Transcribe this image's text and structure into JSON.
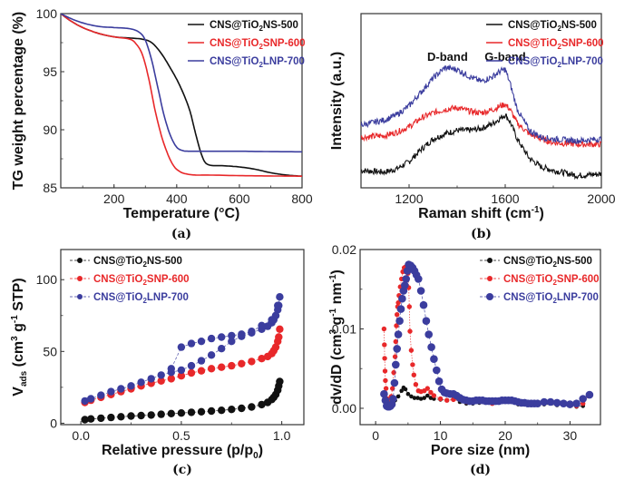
{
  "colors": {
    "black": "#111111",
    "red": "#e8282a",
    "blue": "#3b3d9e"
  },
  "chart_data": [
    {
      "id": "a",
      "type": "line",
      "panel_label": "(a)",
      "title": "",
      "xlabel": "Temperature (°C)",
      "ylabel": "TG weight percentage (%)",
      "xlim": [
        30,
        800
      ],
      "ylim": [
        85,
        100
      ],
      "xticks": [
        200,
        400,
        600,
        800
      ],
      "yticks": [
        85,
        90,
        95,
        100
      ],
      "legend_position": "top-right",
      "series": [
        {
          "name": "CNS@TiO2NS-500",
          "legend_main": "CNS@TiO",
          "legend_sub": "2",
          "legend_rest": "NS-500",
          "color": "#111111",
          "x": [
            30,
            60,
            100,
            150,
            200,
            250,
            290,
            320,
            350,
            380,
            410,
            440,
            460,
            480,
            500,
            550,
            600,
            650,
            700,
            750,
            800
          ],
          "y": [
            100,
            99.4,
            98.8,
            98.3,
            98.0,
            97.9,
            97.8,
            97.5,
            96.6,
            95.3,
            93.8,
            91.8,
            89.7,
            87.8,
            87.0,
            86.9,
            86.8,
            86.6,
            86.3,
            86.1,
            86.0
          ]
        },
        {
          "name": "CNS@TiO2SNP-600",
          "legend_main": "CNS@TiO",
          "legend_sub": "2",
          "legend_rest": "SNP-600",
          "color": "#e8282a",
          "x": [
            30,
            60,
            100,
            150,
            200,
            250,
            270,
            290,
            310,
            330,
            350,
            370,
            390,
            410,
            430,
            460,
            500,
            600,
            700,
            800
          ],
          "y": [
            100,
            99.4,
            98.8,
            98.3,
            98.0,
            97.8,
            97.4,
            96.5,
            94.5,
            91.8,
            89.6,
            88.0,
            86.9,
            86.4,
            86.2,
            86.1,
            86.1,
            86.05,
            86.02,
            86.0
          ]
        },
        {
          "name": "CNS@TiO2LNP-700",
          "legend_main": "CNS@TiO",
          "legend_sub": "2",
          "legend_rest": "LNP-700",
          "color": "#3b3d9e",
          "x": [
            30,
            60,
            100,
            150,
            200,
            250,
            280,
            300,
            320,
            340,
            360,
            380,
            400,
            420,
            440,
            500,
            600,
            700,
            800
          ],
          "y": [
            100,
            99.6,
            99.2,
            98.9,
            98.8,
            98.7,
            98.4,
            97.7,
            96.0,
            93.6,
            91.2,
            89.5,
            88.5,
            88.2,
            88.15,
            88.15,
            88.15,
            88.12,
            88.1
          ]
        }
      ]
    },
    {
      "id": "b",
      "type": "line",
      "panel_label": "(b)",
      "title": "",
      "xlabel": "Raman shift (cm-1)",
      "xlabel_main": "Raman shift (cm",
      "xlabel_sup": "-1",
      "xlabel_end": ")",
      "ylabel": "Intensity (a.u.)",
      "xlim": [
        1000,
        2000
      ],
      "ylim": [
        0,
        1
      ],
      "xticks": [
        1200,
        1600,
        2000
      ],
      "yticks": [],
      "legend_position": "top-right",
      "annotations": [
        {
          "text": "D-band",
          "x": 1360,
          "y": 0.73
        },
        {
          "text": "G-band",
          "x": 1600,
          "y": 0.73
        }
      ],
      "series": [
        {
          "name": "CNS@TiO2NS-500",
          "legend_main": "CNS@TiO",
          "legend_sub": "2",
          "legend_rest": "NS-500",
          "color": "#111111",
          "x": [
            1000,
            1100,
            1150,
            1200,
            1250,
            1300,
            1350,
            1400,
            1450,
            1500,
            1550,
            1580,
            1600,
            1620,
            1650,
            1700,
            1750,
            1800,
            1900,
            2000
          ],
          "y": [
            0.1,
            0.09,
            0.11,
            0.15,
            0.22,
            0.28,
            0.31,
            0.33,
            0.33,
            0.34,
            0.37,
            0.4,
            0.42,
            0.38,
            0.28,
            0.17,
            0.12,
            0.1,
            0.07,
            0.08
          ]
        },
        {
          "name": "CNS@TiO2SNP-600",
          "legend_main": "CNS@TiO",
          "legend_sub": "2",
          "legend_rest": "SNP-600",
          "color": "#e8282a",
          "x": [
            1000,
            1100,
            1150,
            1200,
            1250,
            1300,
            1350,
            1400,
            1450,
            1500,
            1550,
            1580,
            1600,
            1620,
            1650,
            1700,
            1750,
            1800,
            1900,
            2000
          ],
          "y": [
            0.29,
            0.3,
            0.32,
            0.35,
            0.4,
            0.43,
            0.45,
            0.46,
            0.44,
            0.43,
            0.45,
            0.47,
            0.48,
            0.45,
            0.37,
            0.31,
            0.28,
            0.26,
            0.25,
            0.25
          ]
        },
        {
          "name": "CNS@TiO2LNP-700",
          "legend_main": "CNS@TiO",
          "legend_sub": "2",
          "legend_rest": "LNP-700",
          "color": "#3b3d9e",
          "x": [
            1000,
            1100,
            1150,
            1200,
            1250,
            1300,
            1350,
            1400,
            1450,
            1500,
            1550,
            1580,
            1600,
            1620,
            1650,
            1700,
            1750,
            1800,
            1900,
            2000
          ],
          "y": [
            0.36,
            0.39,
            0.42,
            0.47,
            0.55,
            0.63,
            0.69,
            0.68,
            0.64,
            0.61,
            0.64,
            0.67,
            0.68,
            0.6,
            0.45,
            0.33,
            0.29,
            0.28,
            0.27,
            0.28
          ]
        }
      ]
    },
    {
      "id": "c",
      "type": "scatter",
      "panel_label": "(c)",
      "title": "",
      "xlabel": "Relative pressure (p/p0)",
      "xlabel_main": "Relative pressure (p/p",
      "xlabel_sub": "0",
      "xlabel_end": ")",
      "ylabel": "Vads (cm3 g-1 STP)",
      "xlim": [
        -0.1,
        1.11
      ],
      "ylim": [
        -1,
        121
      ],
      "xticks": [
        0.0,
        0.5,
        1.0
      ],
      "xtick_labels": [
        "0.0",
        "0.5",
        "1.0"
      ],
      "yticks": [
        0,
        50,
        100
      ],
      "legend_position": "top-left",
      "series": [
        {
          "name": "CNS@TiO2NS-500",
          "legend_main": "CNS@TiO",
          "legend_sub": "2",
          "legend_rest": "NS-500",
          "color": "#111111",
          "x": [
            0.02,
            0.05,
            0.1,
            0.15,
            0.2,
            0.25,
            0.3,
            0.35,
            0.4,
            0.45,
            0.5,
            0.55,
            0.6,
            0.65,
            0.7,
            0.75,
            0.8,
            0.85,
            0.9,
            0.93,
            0.95,
            0.96,
            0.97,
            0.98,
            0.985,
            0.99
          ],
          "y": [
            2.5,
            3,
            3.5,
            4,
            4.5,
            5,
            5.3,
            5.7,
            6.2,
            6.7,
            7.1,
            7.6,
            8,
            8.5,
            9,
            9.6,
            10.4,
            11.3,
            13,
            14.5,
            16.5,
            18,
            20,
            23,
            26,
            29
          ]
        },
        {
          "name": "CNS@TiO2SNP-600",
          "legend_main": "CNS@TiO",
          "legend_sub": "2",
          "legend_rest": "SNP-600",
          "color": "#e8282a",
          "x": [
            0.02,
            0.05,
            0.1,
            0.15,
            0.2,
            0.25,
            0.3,
            0.35,
            0.4,
            0.45,
            0.5,
            0.55,
            0.6,
            0.65,
            0.7,
            0.75,
            0.8,
            0.85,
            0.9,
            0.93,
            0.95,
            0.96,
            0.97,
            0.98,
            0.985,
            0.99
          ],
          "y": [
            14.5,
            16,
            18,
            20,
            22,
            24,
            26,
            27.8,
            29.5,
            31,
            33,
            35,
            36.5,
            38,
            39,
            40,
            41.5,
            43,
            45,
            46.5,
            48.5,
            50.5,
            53,
            57,
            60,
            65.5
          ]
        },
        {
          "name": "CNS@TiO2LNP-700",
          "legend_main": "CNS@TiO",
          "legend_sub": "2",
          "legend_rest": "LNP-700",
          "color": "#3b3d9e",
          "x": [
            0.02,
            0.05,
            0.1,
            0.15,
            0.2,
            0.25,
            0.3,
            0.35,
            0.4,
            0.45,
            0.5,
            0.55,
            0.6,
            0.65,
            0.7,
            0.75,
            0.8,
            0.85,
            0.9,
            0.93,
            0.95,
            0.96,
            0.97,
            0.98,
            0.985,
            0.99,
            0.98,
            0.97,
            0.95,
            0.9,
            0.85,
            0.8,
            0.75,
            0.7,
            0.65,
            0.6,
            0.55,
            0.5,
            0.45
          ],
          "y": [
            15.5,
            17,
            19.5,
            22,
            24,
            26,
            28.5,
            31,
            33.5,
            35.5,
            37,
            40,
            43.5,
            47.5,
            52,
            57,
            60.5,
            63,
            65.5,
            67.5,
            70,
            72,
            75,
            79,
            82,
            88,
            82,
            75,
            72,
            68,
            64,
            62,
            61,
            60,
            59,
            57,
            55.5,
            53,
            38
          ]
        }
      ]
    },
    {
      "id": "d",
      "type": "scatter",
      "panel_label": "(d)",
      "title": "",
      "xlabel": "Pore size (nm)",
      "ylabel": "dv/dD (cm3 g-1 nm-1)",
      "xlim": [
        -2.4,
        34.7
      ],
      "ylim": [
        -0.00206,
        0.02
      ],
      "xticks": [
        0,
        10,
        20,
        30
      ],
      "yticks": [
        0.0,
        0.01,
        0.02
      ],
      "ytick_labels": [
        "0.00",
        "0.01",
        "0.02"
      ],
      "legend_position": "top-right",
      "series": [
        {
          "name": "CNS@TiO2NS-500",
          "legend_main": "CNS@TiO",
          "legend_sub": "2",
          "legend_rest": "NS-500",
          "color": "#111111",
          "x": [
            1.5,
            2,
            2.5,
            3,
            3.5,
            4,
            4.3,
            4.6,
            5,
            5.5,
            6,
            6.5,
            7,
            7.5,
            8,
            8.5,
            9,
            10,
            11,
            12,
            13,
            14,
            15,
            16,
            18,
            20,
            22,
            24,
            26,
            28,
            30,
            31,
            32
          ],
          "y": [
            0.001,
            0.0005,
            0.0007,
            0.001,
            0.0015,
            0.0022,
            0.0026,
            0.0024,
            0.0018,
            0.0015,
            0.0013,
            0.0013,
            0.0012,
            0.0013,
            0.0016,
            0.0013,
            0.0012,
            0.0011,
            0.001,
            0.0012,
            0.0008,
            0.0006,
            0.0006,
            0.0007,
            0.0006,
            0.0009,
            0.0005,
            0.0004,
            0.0005,
            0.0004,
            0.0003,
            0.0002,
            0.0003
          ]
        },
        {
          "name": "CNS@TiO2SNP-600",
          "legend_main": "CNS@TiO",
          "legend_sub": "2",
          "legend_rest": "SNP-600",
          "color": "#e8282a",
          "x": [
            1.3,
            1.35,
            1.4,
            1.45,
            1.5,
            1.6,
            1.8,
            2.0,
            2.2,
            2.4,
            2.6,
            2.8,
            3.0,
            3.1,
            3.2,
            3.3,
            3.4,
            3.5,
            3.6,
            3.8,
            4.0,
            4.2,
            4.4,
            4.6,
            4.8,
            5.0,
            5.1,
            5.2,
            5.3,
            5.5,
            5.7,
            5.9,
            6.2,
            6.6,
            7.0,
            7.5,
            8.0,
            8.5,
            9,
            10,
            11,
            12,
            14,
            16,
            18,
            20,
            22,
            25,
            28,
            31,
            32,
            33
          ],
          "y": [
            0.01,
            0.008,
            0.0063,
            0.0047,
            0.0035,
            0.0025,
            0.0012,
            0.0006,
            0.0008,
            0.0015,
            0.0025,
            0.0045,
            0.0065,
            0.0084,
            0.0104,
            0.0118,
            0.0128,
            0.0133,
            0.0142,
            0.0153,
            0.0163,
            0.0172,
            0.0177,
            0.0178,
            0.0176,
            0.017,
            0.0152,
            0.0128,
            0.0097,
            0.0073,
            0.0055,
            0.0042,
            0.003,
            0.0022,
            0.0021,
            0.0022,
            0.0025,
            0.002,
            0.0016,
            0.0012,
            0.001,
            0.0011,
            0.0008,
            0.0009,
            0.0006,
            0.001,
            0.0007,
            0.0006,
            0.0007,
            0.0003,
            0.0006,
            0.0017
          ]
        },
        {
          "name": "CNS@TiO2LNP-700",
          "legend_main": "CNS@TiO",
          "legend_sub": "2",
          "legend_rest": "LNP-700",
          "color": "#3b3d9e",
          "x": [
            1.3,
            1.5,
            1.7,
            1.9,
            2.1,
            2.3,
            2.5,
            2.7,
            2.9,
            3.1,
            3.3,
            3.5,
            3.7,
            3.9,
            4.1,
            4.3,
            4.5,
            4.7,
            4.9,
            5.1,
            5.4,
            5.7,
            6.0,
            6.3,
            6.6,
            7.0,
            7.4,
            7.8,
            8.2,
            8.6,
            9.0,
            9.4,
            9.8,
            10.2,
            10.6,
            11,
            11.5,
            12,
            12.5,
            13,
            13.5,
            14,
            14.5,
            15,
            15.5,
            16,
            16.5,
            17,
            17.5,
            18,
            18.5,
            19,
            19.5,
            20,
            20.5,
            21,
            21.5,
            22,
            22.5,
            23,
            23.5,
            24,
            24.5,
            25,
            26,
            27,
            28,
            29,
            30,
            31,
            32,
            33
          ],
          "y": [
            0.0018,
            0.001,
            0.0003,
            0.0002,
            0.0002,
            0.0003,
            0.0005,
            0.0012,
            0.0032,
            0.0055,
            0.0075,
            0.0093,
            0.011,
            0.0125,
            0.0138,
            0.0148,
            0.0155,
            0.0163,
            0.0173,
            0.0181,
            0.018,
            0.0177,
            0.0173,
            0.0168,
            0.0163,
            0.0148,
            0.013,
            0.011,
            0.0093,
            0.0077,
            0.0062,
            0.0048,
            0.0034,
            0.0024,
            0.002,
            0.0019,
            0.0018,
            0.0018,
            0.0016,
            0.0013,
            0.0011,
            0.001,
            0.0009,
            0.0009,
            0.001,
            0.001,
            0.001,
            0.0009,
            0.0009,
            0.0009,
            0.0009,
            0.0009,
            0.001,
            0.001,
            0.001,
            0.001,
            0.0009,
            0.0008,
            0.0007,
            0.0007,
            0.0006,
            0.0006,
            0.0006,
            0.0006,
            0.0008,
            0.0008,
            0.0007,
            0.0006,
            0.0005,
            0.0006,
            0.0012,
            0.0017
          ]
        }
      ]
    }
  ]
}
